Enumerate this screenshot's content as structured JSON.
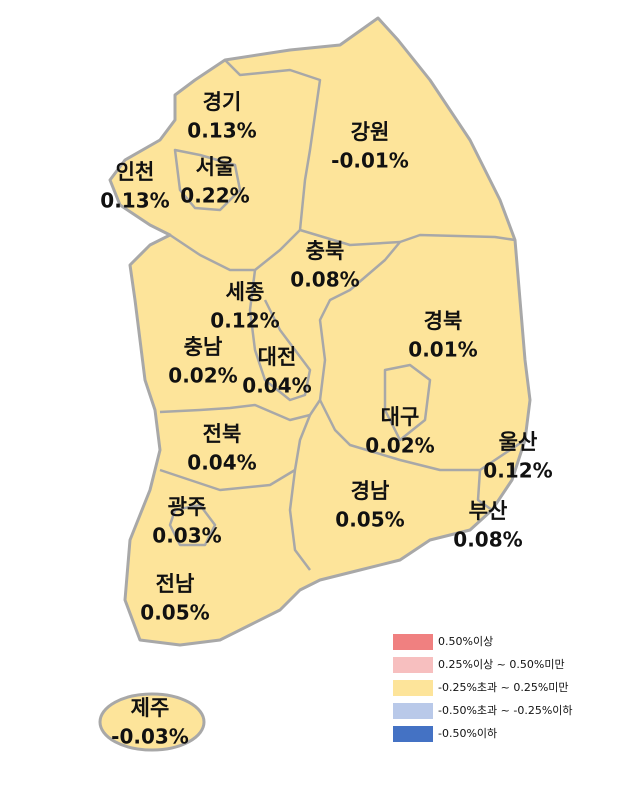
{
  "regions": [
    {
      "name": "경기",
      "change": "0.13%"
    },
    {
      "name": "인천",
      "change": "0.13%"
    },
    {
      "name": "서울",
      "change": "0.22%"
    },
    {
      "name": "강원",
      "change": "-0.01%"
    },
    {
      "name": "충북",
      "change": "0.08%"
    },
    {
      "name": "세종",
      "change": "0.12%"
    },
    {
      "name": "충남",
      "change": "0.02%"
    },
    {
      "name": "대전",
      "change": "0.04%"
    },
    {
      "name": "경북",
      "change": "0.01%"
    },
    {
      "name": "대구",
      "change": "0.02%"
    },
    {
      "name": "울산",
      "change": "0.12%"
    },
    {
      "name": "전북",
      "change": "0.04%"
    },
    {
      "name": "광주",
      "change": "0.03%"
    },
    {
      "name": "경남",
      "change": "0.05%"
    },
    {
      "name": "부산",
      "change": "0.08%"
    },
    {
      "name": "전남",
      "change": "0.05%"
    },
    {
      "name": "제주",
      "change": "-0.03%"
    }
  ],
  "legend": [
    {
      "label": "0.50%이상",
      "color": "#f08080"
    },
    {
      "label": "0.25%이상 ~ 0.50%미만",
      "color": "#f7bfbf"
    },
    {
      "label": "-0.25%초과 ~ 0.25%미만",
      "color": "#fde49a"
    },
    {
      "label": "-0.50%초과 ~ -0.25%이하",
      "color": "#b9c9e9"
    },
    {
      "label": "-0.50%이하",
      "color": "#4472c4"
    }
  ]
}
